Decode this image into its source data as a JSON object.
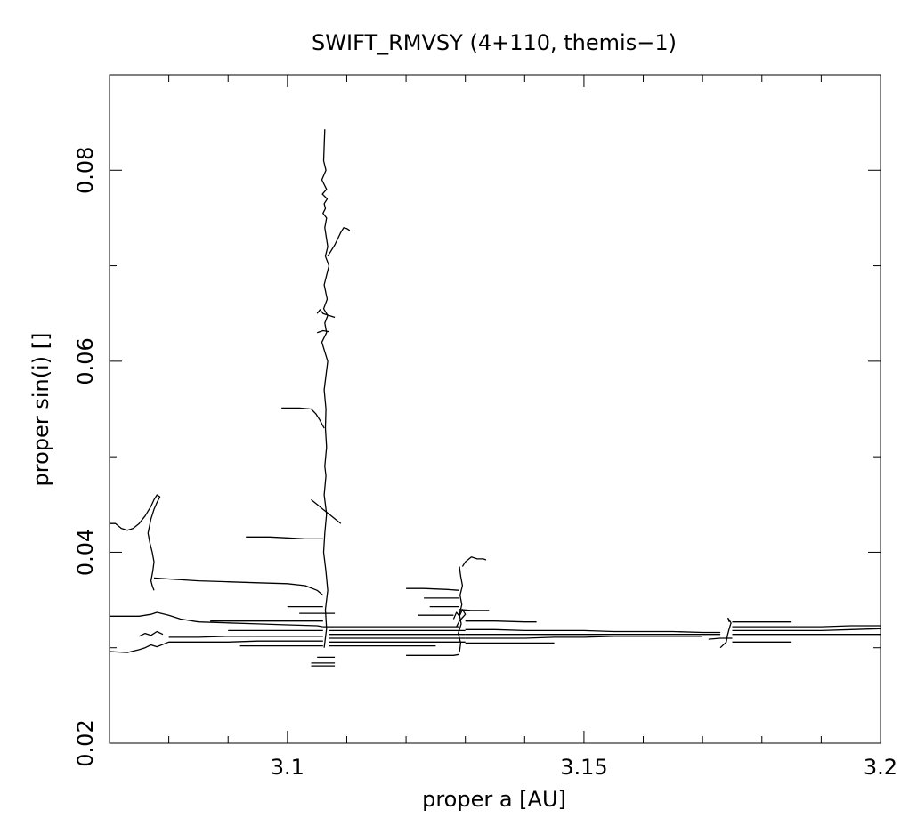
{
  "chart_data": {
    "type": "line",
    "title": "SWIFT_RMVSY (4+110, themis−1)",
    "xlabel": "proper a [AU]",
    "ylabel": "proper sin(i) []",
    "xlim": [
      3.07,
      3.2
    ],
    "ylim": [
      0.02,
      0.09
    ],
    "x_ticks": [
      3.1,
      3.15,
      3.2
    ],
    "x_tick_labels": [
      "3.1",
      "3.15",
      "3.2"
    ],
    "x_minor_step": 0.01,
    "y_ticks": [
      0.02,
      0.04,
      0.06,
      0.08
    ],
    "y_tick_labels": [
      "0.02",
      "0.04",
      "0.06",
      "0.08"
    ],
    "y_minor_step": 0.01,
    "grid": false,
    "legend": "none",
    "line_color": "#000000",
    "series": [
      {
        "x": [
          3.1063,
          3.1061,
          3.1065,
          3.1058,
          3.1066,
          3.1059,
          3.1067,
          3.1062,
          3.1064,
          3.106,
          3.1066,
          3.1063,
          3.1068,
          3.1064,
          3.107,
          3.1062,
          3.1067,
          3.1061,
          3.1068,
          3.1063,
          3.1066,
          3.1058,
          3.1068,
          3.1062,
          3.1065,
          3.1064,
          3.1066,
          3.1063,
          3.1065,
          3.1062,
          3.1066,
          3.1063,
          3.1061,
          3.1065,
          3.1068,
          3.1064,
          3.1066,
          3.1062
        ],
        "y": [
          0.0843,
          0.081,
          0.08,
          0.079,
          0.078,
          0.0775,
          0.077,
          0.0765,
          0.076,
          0.0755,
          0.075,
          0.074,
          0.072,
          0.071,
          0.07,
          0.068,
          0.0665,
          0.0655,
          0.0648,
          0.064,
          0.063,
          0.062,
          0.06,
          0.057,
          0.055,
          0.053,
          0.051,
          0.049,
          0.048,
          0.046,
          0.044,
          0.042,
          0.04,
          0.038,
          0.036,
          0.034,
          0.032,
          0.03
        ]
      },
      {
        "x": [
          3.1068,
          3.108,
          3.109,
          3.1095,
          3.11,
          3.1105
        ],
        "y": [
          0.071,
          0.0722,
          0.0735,
          0.074,
          0.0739,
          0.0737
        ]
      },
      {
        "x": [
          3.105,
          3.1055,
          3.106,
          3.107,
          3.108
        ],
        "y": [
          0.065,
          0.0654,
          0.065,
          0.0648,
          0.0646
        ]
      },
      {
        "x": [
          3.105,
          3.106,
          3.107
        ],
        "y": [
          0.063,
          0.0632,
          0.0631
        ]
      },
      {
        "x": [
          3.099,
          3.102,
          3.104,
          3.1048,
          3.1055,
          3.1062
        ],
        "y": [
          0.0551,
          0.0551,
          0.055,
          0.0545,
          0.0538,
          0.053
        ]
      },
      {
        "x": [
          3.104,
          3.105,
          3.106
        ],
        "y": [
          0.0455,
          0.045,
          0.0445
        ]
      },
      {
        "x": [
          3.106,
          3.107,
          3.108,
          3.109
        ],
        "y": [
          0.0445,
          0.044,
          0.0435,
          0.043
        ]
      },
      {
        "x": [
          3.093,
          3.097,
          3.1,
          3.103,
          3.105,
          3.106
        ],
        "y": [
          0.0416,
          0.0416,
          0.0415,
          0.0414,
          0.0414,
          0.0414
        ]
      },
      {
        "x": [
          3.07,
          3.071,
          3.072,
          3.073,
          3.074,
          3.075,
          3.076,
          3.077,
          3.0775,
          3.078,
          3.0785,
          3.078,
          3.0775,
          3.077,
          3.0765,
          3.0768,
          3.0772,
          3.0775,
          3.0773,
          3.077,
          3.0772,
          3.0775
        ],
        "y": [
          0.043,
          0.043,
          0.0425,
          0.0423,
          0.0425,
          0.043,
          0.0438,
          0.0448,
          0.0455,
          0.046,
          0.0458,
          0.0452,
          0.0445,
          0.0435,
          0.042,
          0.041,
          0.04,
          0.039,
          0.038,
          0.037,
          0.0365,
          0.036
        ]
      },
      {
        "x": [
          3.0775,
          3.08,
          3.085,
          3.09,
          3.095,
          3.1,
          3.103,
          3.105,
          3.106
        ],
        "y": [
          0.0373,
          0.0372,
          0.037,
          0.0369,
          0.0368,
          0.0367,
          0.0365,
          0.036,
          0.0355
        ]
      },
      {
        "x": [
          3.07,
          3.075,
          3.077,
          3.078,
          3.08,
          3.082,
          3.085,
          3.09,
          3.095,
          3.1,
          3.105,
          3.106
        ],
        "y": [
          0.0333,
          0.0333,
          0.0335,
          0.0337,
          0.0334,
          0.033,
          0.0327,
          0.0326,
          0.0325,
          0.0324,
          0.0323,
          0.0322
        ]
      },
      {
        "x": [
          3.07,
          3.073,
          3.075,
          3.076,
          3.077,
          3.078,
          3.08,
          3.085,
          3.09,
          3.095,
          3.1,
          3.105,
          3.106
        ],
        "y": [
          0.0296,
          0.0295,
          0.0298,
          0.03,
          0.0303,
          0.0301,
          0.0306,
          0.0306,
          0.0306,
          0.0307,
          0.0307,
          0.0307,
          0.0307
        ]
      },
      {
        "x": [
          3.075,
          3.076,
          3.077,
          3.078,
          3.079
        ],
        "y": [
          0.0312,
          0.0315,
          0.0313,
          0.0317,
          0.0314
        ]
      },
      {
        "x": [
          3.08,
          3.085,
          3.09,
          3.095,
          3.1,
          3.105,
          3.106
        ],
        "y": [
          0.0311,
          0.0311,
          0.0312,
          0.0312,
          0.0312,
          0.0312,
          0.0312
        ]
      },
      {
        "x": [
          3.087,
          3.09,
          3.095,
          3.1,
          3.105,
          3.106
        ],
        "y": [
          0.0328,
          0.0328,
          0.0328,
          0.0328,
          0.0328,
          0.0328
        ]
      },
      {
        "x": [
          3.09,
          3.095,
          3.1,
          3.105,
          3.106
        ],
        "y": [
          0.0318,
          0.0318,
          0.0318,
          0.0318,
          0.0318
        ]
      },
      {
        "x": [
          3.092,
          3.096,
          3.1,
          3.104,
          3.106
        ],
        "y": [
          0.0302,
          0.0302,
          0.0302,
          0.0302,
          0.0302
        ]
      },
      {
        "x": [
          3.1,
          3.103,
          3.106
        ],
        "y": [
          0.0343,
          0.0343,
          0.0343
        ]
      },
      {
        "x": [
          3.102,
          3.105,
          3.108
        ],
        "y": [
          0.0336,
          0.0336,
          0.0336
        ]
      },
      {
        "x": [
          3.104,
          3.106,
          3.108
        ],
        "y": [
          0.0284,
          0.0284,
          0.0284
        ]
      },
      {
        "x": [
          3.104,
          3.106,
          3.108
        ],
        "y": [
          0.0281,
          0.0281,
          0.0281
        ]
      },
      {
        "x": [
          3.105,
          3.106,
          3.108
        ],
        "y": [
          0.029,
          0.029,
          0.029
        ]
      },
      {
        "x": [
          3.106,
          3.11,
          3.115,
          3.12,
          3.125,
          3.129
        ],
        "y": [
          0.0322,
          0.0322,
          0.0322,
          0.0322,
          0.0322,
          0.0322
        ]
      },
      {
        "x": [
          3.107,
          3.11,
          3.115,
          3.12,
          3.125,
          3.13
        ],
        "y": [
          0.0318,
          0.0318,
          0.0318,
          0.0318,
          0.0318,
          0.0318
        ]
      },
      {
        "x": [
          3.107,
          3.11,
          3.115,
          3.12,
          3.125,
          3.13
        ],
        "y": [
          0.0314,
          0.0314,
          0.0314,
          0.0314,
          0.0314,
          0.0314
        ]
      },
      {
        "x": [
          3.107,
          3.11,
          3.115,
          3.12,
          3.125,
          3.13
        ],
        "y": [
          0.031,
          0.031,
          0.031,
          0.031,
          0.031,
          0.031
        ]
      },
      {
        "x": [
          3.107,
          3.11,
          3.115,
          3.12,
          3.125,
          3.13
        ],
        "y": [
          0.0306,
          0.0306,
          0.0306,
          0.0306,
          0.0306,
          0.0306
        ]
      },
      {
        "x": [
          3.107,
          3.11,
          3.115,
          3.12,
          3.125
        ],
        "y": [
          0.0302,
          0.0302,
          0.0302,
          0.0302,
          0.0302
        ]
      },
      {
        "x": [
          3.12,
          3.123,
          3.127,
          3.129
        ],
        "y": [
          0.0362,
          0.0362,
          0.0361,
          0.036
        ]
      },
      {
        "x": [
          3.123,
          3.126,
          3.129
        ],
        "y": [
          0.0352,
          0.0352,
          0.0352
        ]
      },
      {
        "x": [
          3.124,
          3.127,
          3.129
        ],
        "y": [
          0.0343,
          0.0343,
          0.0343
        ]
      },
      {
        "x": [
          3.122,
          3.125,
          3.128
        ],
        "y": [
          0.0334,
          0.0334,
          0.0334
        ]
      },
      {
        "x": [
          3.12,
          3.124,
          3.128,
          3.129
        ],
        "y": [
          0.0292,
          0.0292,
          0.0292,
          0.0293
        ]
      },
      {
        "x": [
          3.129,
          3.1292,
          3.1288,
          3.1293,
          3.129,
          3.1294,
          3.1291,
          3.1295,
          3.1292,
          3.129
        ],
        "y": [
          0.0295,
          0.0305,
          0.0315,
          0.0325,
          0.0335,
          0.0345,
          0.0355,
          0.0365,
          0.0375,
          0.0385
        ]
      },
      {
        "x": [
          3.1295,
          3.13,
          3.131,
          3.132,
          3.133,
          3.1335
        ],
        "y": [
          0.0385,
          0.039,
          0.0395,
          0.0393,
          0.0393,
          0.0392
        ]
      },
      {
        "x": [
          3.129,
          3.131,
          3.134
        ],
        "y": [
          0.034,
          0.0339,
          0.0339
        ]
      },
      {
        "x": [
          3.13,
          3.135,
          3.14,
          3.142
        ],
        "y": [
          0.0328,
          0.0328,
          0.0327,
          0.0327
        ]
      },
      {
        "x": [
          3.13,
          3.135,
          3.14,
          3.145,
          3.15,
          3.155,
          3.16,
          3.165,
          3.17,
          3.173
        ],
        "y": [
          0.0319,
          0.0319,
          0.0318,
          0.0318,
          0.0318,
          0.0317,
          0.0317,
          0.0317,
          0.0316,
          0.0316
        ]
      },
      {
        "x": [
          3.13,
          3.135,
          3.14,
          3.145,
          3.15,
          3.155,
          3.16,
          3.165,
          3.17,
          3.173
        ],
        "y": [
          0.0314,
          0.0314,
          0.0314,
          0.0314,
          0.0314,
          0.0314,
          0.0314,
          0.0314,
          0.0314,
          0.0314
        ]
      },
      {
        "x": [
          3.13,
          3.135,
          3.14,
          3.145,
          3.15,
          3.155,
          3.16,
          3.165,
          3.17
        ],
        "y": [
          0.031,
          0.031,
          0.031,
          0.0311,
          0.0311,
          0.0312,
          0.0312,
          0.0312,
          0.0312
        ]
      },
      {
        "x": [
          3.13,
          3.135,
          3.14,
          3.145
        ],
        "y": [
          0.0305,
          0.0305,
          0.0305,
          0.0305
        ]
      },
      {
        "x": [
          3.128,
          3.1285,
          3.129,
          3.1295,
          3.13,
          3.129,
          3.1285
        ],
        "y": [
          0.033,
          0.0337,
          0.0333,
          0.034,
          0.0335,
          0.0328,
          0.0322
        ]
      },
      {
        "x": [
          3.173,
          3.174,
          3.1742,
          3.1745,
          3.1748,
          3.1743,
          3.1745
        ],
        "y": [
          0.03,
          0.0306,
          0.0313,
          0.032,
          0.0326,
          0.0331,
          0.0327
        ]
      },
      {
        "x": [
          3.175,
          3.18,
          3.185
        ],
        "y": [
          0.0327,
          0.0327,
          0.0327
        ]
      },
      {
        "x": [
          3.175,
          3.18,
          3.185,
          3.19,
          3.195,
          3.2
        ],
        "y": [
          0.0322,
          0.0322,
          0.0322,
          0.0322,
          0.0323,
          0.0323
        ]
      },
      {
        "x": [
          3.175,
          3.18,
          3.185,
          3.19,
          3.195,
          3.2
        ],
        "y": [
          0.0318,
          0.0318,
          0.0318,
          0.0318,
          0.0319,
          0.032
        ]
      },
      {
        "x": [
          3.175,
          3.18,
          3.185,
          3.19,
          3.195,
          3.2
        ],
        "y": [
          0.0314,
          0.0314,
          0.0314,
          0.0314,
          0.0314,
          0.0314
        ]
      },
      {
        "x": [
          3.175,
          3.18,
          3.185
        ],
        "y": [
          0.0306,
          0.0306,
          0.0306
        ]
      },
      {
        "x": [
          3.171,
          3.173,
          3.175
        ],
        "y": [
          0.0309,
          0.031,
          0.031
        ]
      }
    ]
  }
}
